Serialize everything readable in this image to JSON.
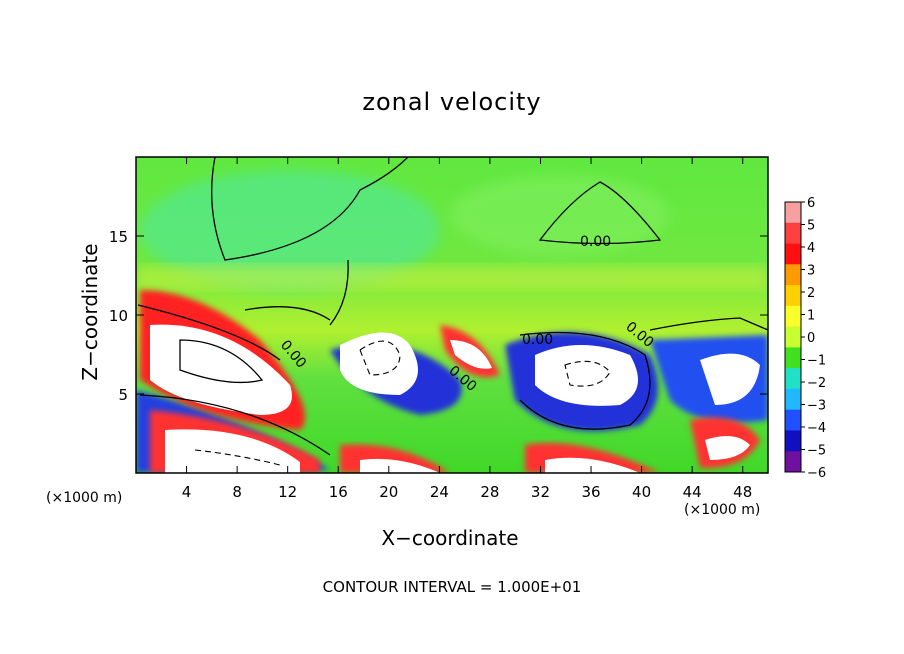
{
  "chart_data": {
    "type": "heatmap",
    "title": "zonal velocity",
    "xlabel": "X−coordinate",
    "ylabel": "Z−coordinate",
    "x_unit_label": "(×1000 m)",
    "x_unit_label_right": "(×1000 m)",
    "footer": "CONTOUR INTERVAL = 1.000E+01",
    "xlim": [
      0,
      50
    ],
    "ylim": [
      0,
      20
    ],
    "x_ticks": [
      4,
      8,
      12,
      16,
      20,
      24,
      28,
      32,
      36,
      40,
      44,
      48
    ],
    "y_ticks": [
      5,
      10,
      15
    ],
    "colorbar": {
      "levels": [
        6,
        5,
        4,
        3,
        2,
        1,
        0,
        -1,
        -2,
        -3,
        -4,
        -5,
        -6
      ],
      "colors": [
        "#f6a0a0",
        "#ff4040",
        "#ff1010",
        "#ff9a00",
        "#ffd000",
        "#f8ff2a",
        "#c8ff30",
        "#40e020",
        "#20e0c8",
        "#20b8ff",
        "#2050ff",
        "#1010c0",
        "#7010a0"
      ]
    },
    "contour_labels": [
      "0.00",
      "0.00",
      "0.00",
      "0.00",
      "0.00"
    ],
    "field_features": [
      {
        "x": 8,
        "z": 7,
        "sign": "positive",
        "kind": "strong jet"
      },
      {
        "x": 10,
        "z": 1.5,
        "sign": "positive",
        "kind": "strong jet"
      },
      {
        "x": 20,
        "z": 7,
        "sign": "negative",
        "kind": "strong jet"
      },
      {
        "x": 20,
        "z": 0.5,
        "sign": "positive",
        "kind": "strong jet"
      },
      {
        "x": 26.5,
        "z": 7.5,
        "sign": "positive",
        "kind": "strong jet"
      },
      {
        "x": 35,
        "z": 6.5,
        "sign": "negative",
        "kind": "strong jet"
      },
      {
        "x": 35,
        "z": 0.3,
        "sign": "positive",
        "kind": "strong jet"
      },
      {
        "x": 46,
        "z": 5.5,
        "sign": "negative",
        "kind": "strong jet"
      },
      {
        "x": 46,
        "z": 1.8,
        "sign": "positive",
        "kind": "strong jet"
      }
    ]
  }
}
